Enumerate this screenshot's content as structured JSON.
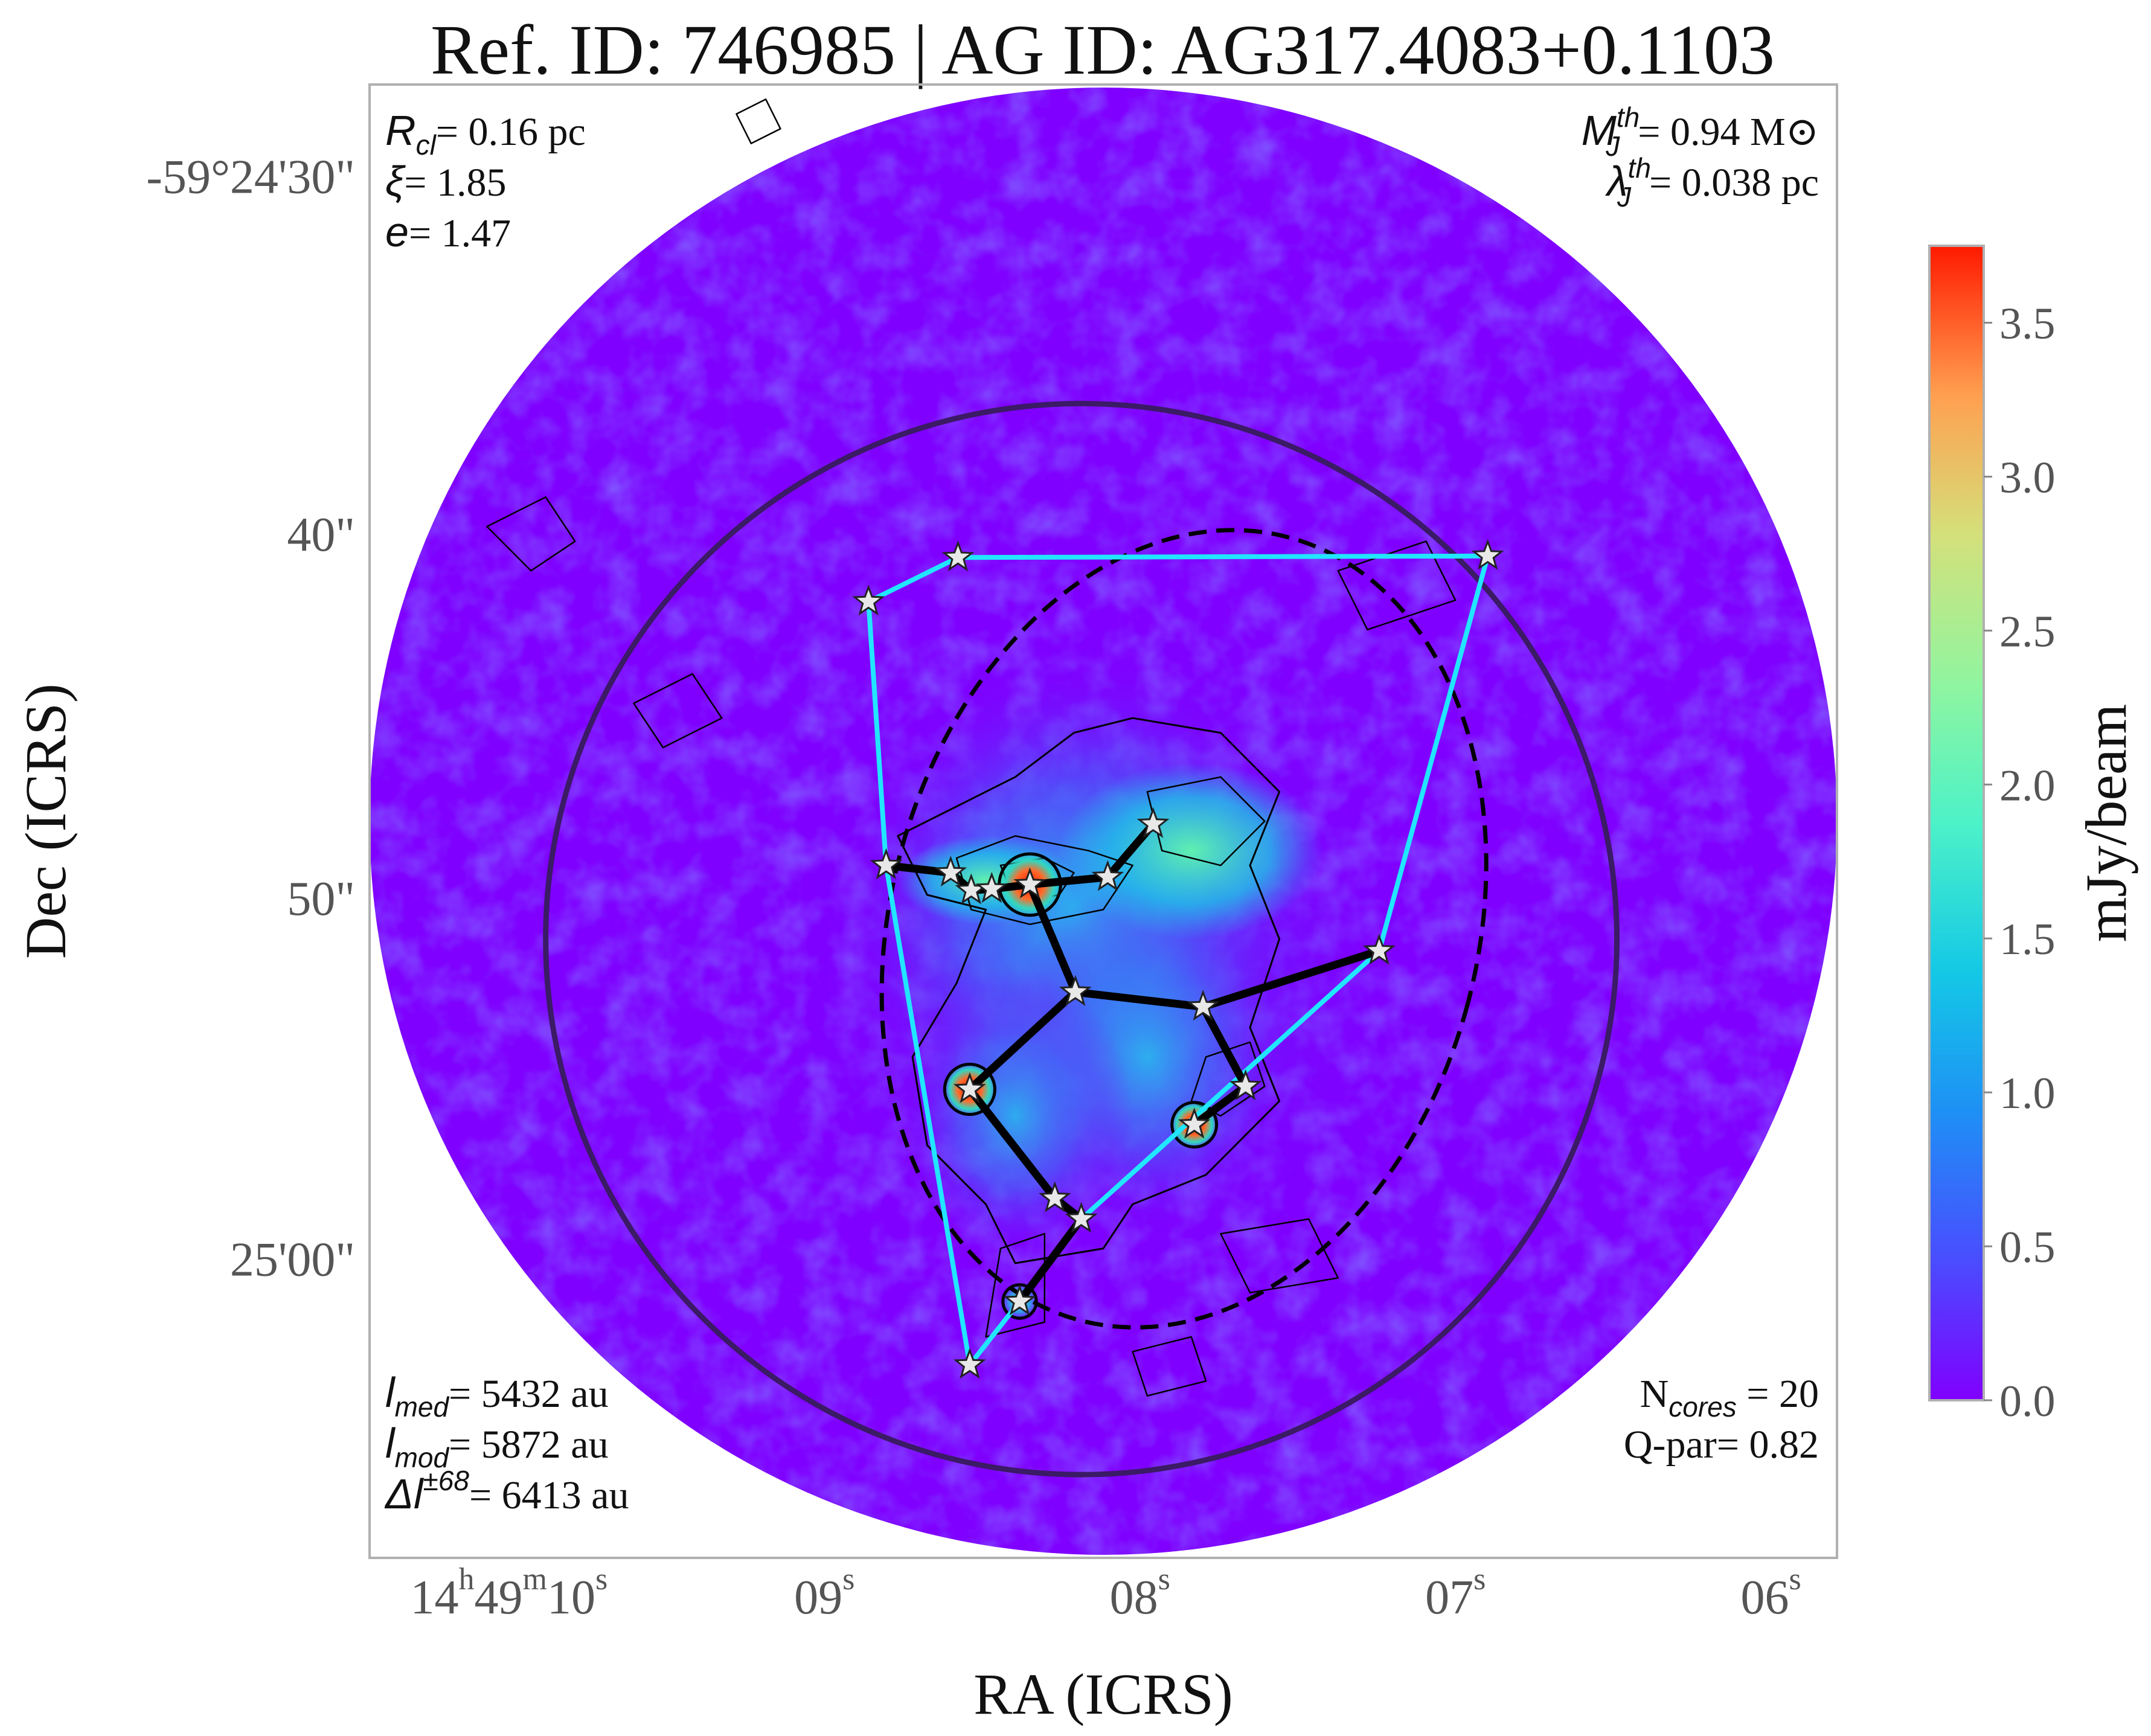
{
  "chart_data": {
    "type": "image",
    "title": "Ref. ID: 746985 | AG ID: AG317.4083+0.1103",
    "xlabel": "RA (ICRS)",
    "ylabel": "Dec (ICRS)",
    "x_ticks": [
      {
        "h": "14",
        "hs": "h",
        "m": "49",
        "ms": "m",
        "s": "10",
        "ss": "s"
      },
      {
        "s": "09",
        "ss": "s"
      },
      {
        "s": "08",
        "ss": "s"
      },
      {
        "s": "07",
        "ss": "s"
      },
      {
        "s": "06",
        "ss": "s"
      }
    ],
    "y_ticks": [
      "-59°24'30\"",
      "40\"",
      "50\"",
      "25'00\""
    ],
    "colorbar": {
      "label": "mJy/beam",
      "range": [
        0.0,
        3.75
      ],
      "ticks": [
        "0.0",
        "0.5",
        "1.0",
        "1.5",
        "2.0",
        "2.5",
        "3.0",
        "3.5"
      ],
      "colormap": "rainbow"
    },
    "annotations": {
      "top_left": [
        {
          "sym": "R",
          "sub": "cl",
          "text": "= 0.16 pc"
        },
        {
          "sym": "ξ",
          "sub": "",
          "text": "= 1.85"
        },
        {
          "sym": "e",
          "sub": "",
          "text": "= 1.47"
        }
      ],
      "top_right": [
        {
          "sym": "M",
          "sup": "th",
          "sub": "J",
          "text": "= 0.94 M⊙"
        },
        {
          "sym": "λ",
          "sup": "th",
          "sub": "J",
          "text": "= 0.038 pc"
        }
      ],
      "bottom_left": [
        {
          "sym": "l",
          "sub": "med",
          "text": "= 5432 au"
        },
        {
          "sym": "l",
          "sub": "mod",
          "text": "= 5872 au"
        },
        {
          "sym": "Δl",
          "sup": "±68",
          "text": "= 6413 au"
        }
      ],
      "bottom_right": [
        {
          "text": "N",
          "sub": "cores",
          "tail": " = 20"
        },
        {
          "text": "Q-par= 0.82"
        }
      ]
    },
    "n_cores": 20,
    "cores": [
      {
        "x": 0.34,
        "y": 0.351
      },
      {
        "x": 0.401,
        "y": 0.321
      },
      {
        "x": 0.352,
        "y": 0.53
      },
      {
        "x": 0.396,
        "y": 0.535
      },
      {
        "x": 0.41,
        "y": 0.547
      },
      {
        "x": 0.424,
        "y": 0.546
      },
      {
        "x": 0.45,
        "y": 0.543
      },
      {
        "x": 0.503,
        "y": 0.538
      },
      {
        "x": 0.534,
        "y": 0.502
      },
      {
        "x": 0.481,
        "y": 0.616
      },
      {
        "x": 0.568,
        "y": 0.626
      },
      {
        "x": 0.688,
        "y": 0.588
      },
      {
        "x": 0.762,
        "y": 0.32
      },
      {
        "x": 0.597,
        "y": 0.68
      },
      {
        "x": 0.562,
        "y": 0.706
      },
      {
        "x": 0.409,
        "y": 0.682
      },
      {
        "x": 0.467,
        "y": 0.756
      },
      {
        "x": 0.485,
        "y": 0.77
      },
      {
        "x": 0.443,
        "y": 0.826
      },
      {
        "x": 0.409,
        "y": 0.869
      }
    ],
    "mst_edges": [
      [
        2,
        3
      ],
      [
        3,
        4
      ],
      [
        4,
        5
      ],
      [
        5,
        6
      ],
      [
        6,
        7
      ],
      [
        7,
        8
      ],
      [
        6,
        9
      ],
      [
        9,
        10
      ],
      [
        10,
        11
      ],
      [
        10,
        13
      ],
      [
        13,
        14
      ],
      [
        9,
        15
      ],
      [
        15,
        16
      ],
      [
        16,
        17
      ],
      [
        17,
        18
      ]
    ],
    "hull_edges": [
      [
        0,
        1
      ],
      [
        1,
        12
      ],
      [
        12,
        11
      ],
      [
        11,
        17
      ],
      [
        17,
        18
      ],
      [
        18,
        19
      ],
      [
        19,
        2
      ],
      [
        2,
        0
      ]
    ],
    "ellipse": {
      "cx": 0.555,
      "cy": 0.573,
      "rx": 0.2,
      "ry": 0.275,
      "angle_deg": 15
    },
    "clump_circle": {
      "cx": 0.485,
      "cy": 0.58,
      "r": 0.365
    },
    "colors": {
      "background": "#7f00ff",
      "hull": "#21e6ff",
      "mst": "#000000",
      "circle": "#3b1a66",
      "frame": "#b0b0b0"
    }
  }
}
